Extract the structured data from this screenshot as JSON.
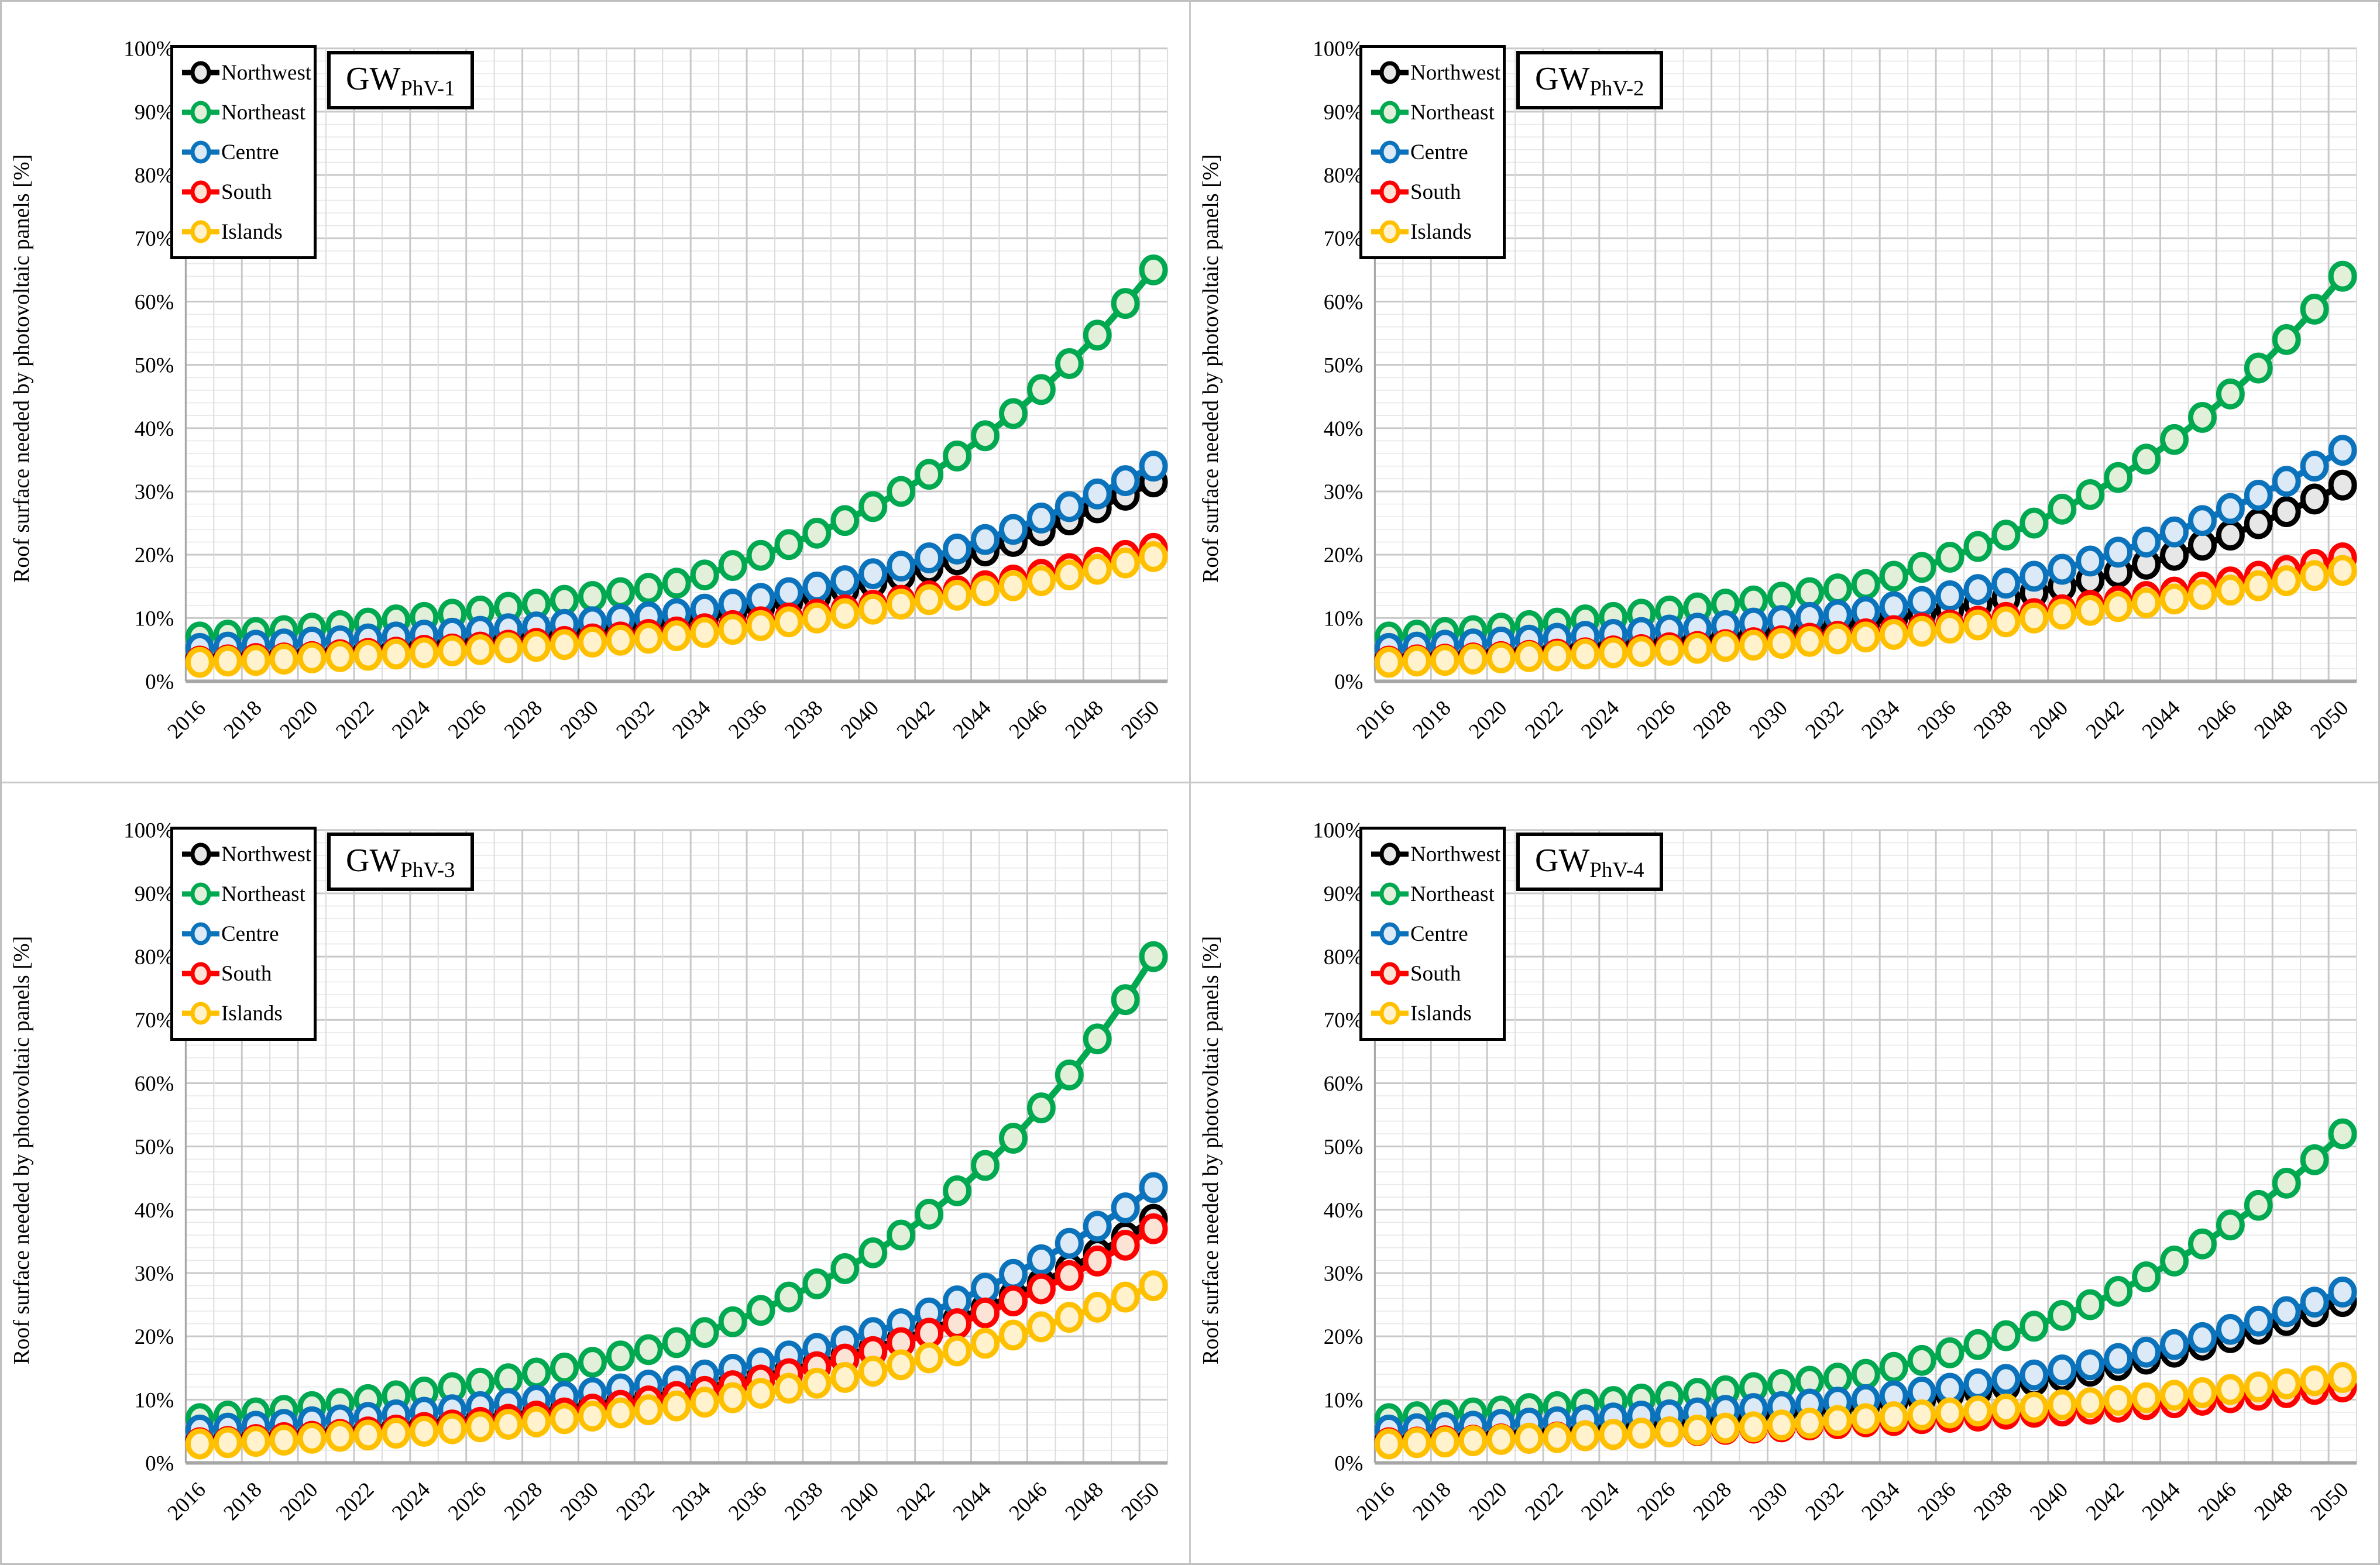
{
  "figure": {
    "ylabel": "Roof surface needed by photovoltaic panels [%]",
    "ytick_labels": [
      "0%",
      "10%",
      "20%",
      "30%",
      "40%",
      "50%",
      "60%",
      "70%",
      "80%",
      "90%",
      "100%"
    ],
    "xtick_labels": [
      "2016",
      "2018",
      "2020",
      "2022",
      "2024",
      "2026",
      "2028",
      "2030",
      "2032",
      "2034",
      "2036",
      "2038",
      "2040",
      "2042",
      "2044",
      "2046",
      "2048",
      "2050"
    ],
    "legend": {
      "items": [
        {
          "label": "Northwest",
          "line_color": "#000000",
          "fill_color": "#E7E7E7"
        },
        {
          "label": "Northeast",
          "line_color": "#00A94F",
          "fill_color": "#E2F0D9"
        },
        {
          "label": "Centre",
          "line_color": "#0B72BC",
          "fill_color": "#DCE9F7"
        },
        {
          "label": "South",
          "line_color": "#FF0000",
          "fill_color": "#FBE3D6"
        },
        {
          "label": "Islands",
          "line_color": "#FFC000",
          "fill_color": "#FFF2CC"
        }
      ]
    },
    "grid": {
      "minor_color": "#E8E8E8",
      "major_color": "#C9C9C9",
      "axis_color": "#A6A6A6"
    }
  },
  "chart_data": [
    {
      "type": "line",
      "title_main": "GW",
      "title_sub": "PhV-1",
      "ylabel": "Roof surface needed by photovoltaic panels [%]",
      "ylim": [
        0,
        100
      ],
      "x_start": 2016,
      "x_end": 2050,
      "x_step": 1,
      "series": [
        {
          "name": "Northwest",
          "values": [
            3.6,
            3.8,
            4.0,
            4.3,
            4.5,
            4.8,
            5.1,
            5.3,
            5.7,
            6.0,
            6.3,
            6.7,
            7.1,
            7.5,
            7.9,
            8.4,
            8.8,
            9.5,
            10.2,
            10.9,
            11.7,
            12.6,
            13.5,
            14.5,
            15.6,
            16.7,
            17.9,
            19.2,
            20.6,
            22.1,
            23.8,
            25.5,
            27.4,
            29.4,
            31.5
          ]
        },
        {
          "name": "Northeast",
          "values": [
            7.0,
            7.3,
            7.7,
            8.0,
            8.4,
            8.8,
            9.2,
            9.7,
            10.1,
            10.6,
            11.1,
            11.7,
            12.2,
            12.8,
            13.4,
            14.0,
            14.7,
            15.5,
            16.8,
            18.3,
            19.9,
            21.6,
            23.4,
            25.4,
            27.6,
            30.0,
            32.7,
            35.6,
            38.8,
            42.3,
            46.1,
            50.2,
            54.7,
            59.7,
            65.0
          ]
        },
        {
          "name": "Centre",
          "values": [
            5.2,
            5.4,
            5.7,
            5.9,
            6.2,
            6.4,
            6.7,
            7.0,
            7.3,
            7.6,
            7.9,
            8.3,
            8.6,
            9.0,
            9.4,
            9.8,
            10.2,
            10.7,
            11.4,
            12.2,
            13.1,
            14.0,
            14.9,
            15.9,
            17.0,
            18.2,
            19.5,
            20.9,
            22.4,
            24.0,
            25.8,
            27.6,
            29.6,
            31.7,
            34.0
          ]
        },
        {
          "name": "South",
          "values": [
            3.2,
            3.4,
            3.6,
            3.7,
            3.9,
            4.2,
            4.4,
            4.6,
            4.9,
            5.1,
            5.4,
            5.7,
            6.0,
            6.3,
            6.7,
            7.0,
            7.4,
            7.8,
            8.3,
            8.8,
            9.4,
            10.0,
            10.6,
            11.3,
            12.0,
            12.8,
            13.5,
            14.3,
            15.1,
            16.0,
            16.9,
            17.8,
            18.8,
            19.9,
            21.0
          ]
        },
        {
          "name": "Islands",
          "values": [
            3.0,
            3.2,
            3.3,
            3.5,
            3.7,
            3.9,
            4.1,
            4.3,
            4.5,
            4.8,
            5.0,
            5.3,
            5.5,
            5.8,
            6.2,
            6.5,
            6.8,
            7.2,
            7.7,
            8.2,
            8.8,
            9.4,
            10.0,
            10.7,
            11.4,
            12.2,
            12.9,
            13.6,
            14.3,
            15.1,
            15.9,
            16.8,
            17.7,
            18.7,
            19.7
          ]
        }
      ]
    },
    {
      "type": "line",
      "title_main": "GW",
      "title_sub": "PhV-2",
      "ylabel": "Roof surface needed by photovoltaic panels [%]",
      "ylim": [
        0,
        100
      ],
      "x_start": 2016,
      "x_end": 2050,
      "x_step": 1,
      "series": [
        {
          "name": "Northwest",
          "values": [
            3.6,
            3.8,
            4.0,
            4.3,
            4.5,
            4.8,
            5.0,
            5.3,
            5.6,
            6.0,
            6.3,
            6.7,
            7.0,
            7.4,
            7.9,
            8.3,
            8.8,
            9.3,
            10.0,
            10.7,
            11.4,
            12.2,
            13.1,
            14.0,
            15.0,
            16.0,
            17.2,
            18.5,
            19.9,
            21.5,
            23.1,
            24.9,
            26.8,
            28.8,
            31.0
          ]
        },
        {
          "name": "Northeast",
          "values": [
            7.0,
            7.3,
            7.7,
            8.0,
            8.4,
            8.8,
            9.2,
            9.7,
            10.1,
            10.6,
            11.1,
            11.6,
            12.2,
            12.7,
            13.3,
            14.0,
            14.6,
            15.3,
            16.6,
            18.0,
            19.6,
            21.3,
            23.1,
            25.0,
            27.2,
            29.5,
            32.2,
            35.1,
            38.2,
            41.7,
            45.4,
            49.5,
            54.0,
            58.8,
            64.0
          ]
        },
        {
          "name": "Centre",
          "values": [
            5.2,
            5.4,
            5.7,
            5.9,
            6.2,
            6.5,
            6.8,
            7.1,
            7.4,
            7.7,
            8.1,
            8.4,
            8.8,
            9.2,
            9.6,
            10.1,
            10.5,
            11.0,
            11.8,
            12.6,
            13.5,
            14.5,
            15.5,
            16.6,
            17.7,
            19.0,
            20.4,
            22.0,
            23.6,
            25.4,
            27.3,
            29.4,
            31.6,
            34.0,
            36.5
          ]
        },
        {
          "name": "South",
          "values": [
            3.2,
            3.4,
            3.5,
            3.7,
            3.9,
            4.1,
            4.3,
            4.5,
            4.8,
            5.0,
            5.3,
            5.5,
            5.8,
            6.1,
            6.4,
            6.8,
            7.1,
            7.5,
            8.0,
            8.4,
            8.9,
            9.5,
            10.1,
            10.7,
            11.3,
            12.0,
            12.7,
            13.4,
            14.1,
            14.9,
            15.7,
            16.6,
            17.5,
            18.5,
            19.5
          ]
        },
        {
          "name": "Islands",
          "values": [
            3.0,
            3.2,
            3.3,
            3.5,
            3.7,
            3.9,
            4.0,
            4.3,
            4.5,
            4.7,
            4.9,
            5.2,
            5.5,
            5.7,
            6.0,
            6.3,
            6.7,
            7.0,
            7.4,
            7.9,
            8.4,
            8.9,
            9.4,
            10.0,
            10.6,
            11.2,
            11.8,
            12.4,
            13.0,
            13.7,
            14.4,
            15.1,
            15.9,
            16.7,
            17.5
          ]
        }
      ]
    },
    {
      "type": "line",
      "title_main": "GW",
      "title_sub": "PhV-3",
      "ylabel": "Roof surface needed by photovoltaic panels [%]",
      "ylim": [
        0,
        100
      ],
      "x_start": 2016,
      "x_end": 2050,
      "x_step": 1,
      "series": [
        {
          "name": "Northwest",
          "values": [
            3.6,
            3.8,
            4.1,
            4.4,
            4.7,
            5.0,
            5.3,
            5.7,
            6.1,
            6.5,
            7.0,
            7.4,
            7.9,
            8.5,
            9.0,
            9.7,
            10.3,
            11.0,
            11.8,
            12.7,
            13.6,
            14.6,
            15.7,
            16.9,
            18.1,
            19.5,
            21.0,
            22.7,
            24.5,
            26.4,
            28.4,
            30.7,
            33.1,
            35.7,
            38.5
          ]
        },
        {
          "name": "Northeast",
          "values": [
            7.0,
            7.4,
            7.9,
            8.3,
            8.9,
            9.4,
            10.0,
            10.6,
            11.2,
            11.9,
            12.6,
            13.3,
            14.2,
            15.0,
            15.9,
            16.9,
            17.9,
            19.0,
            20.6,
            22.3,
            24.1,
            26.2,
            28.3,
            30.7,
            33.2,
            36.0,
            39.3,
            43.0,
            47.0,
            51.3,
            56.1,
            61.3,
            67.0,
            73.2,
            80.0
          ]
        },
        {
          "name": "Centre",
          "values": [
            5.2,
            5.5,
            5.8,
            6.1,
            6.5,
            6.8,
            7.2,
            7.6,
            8.0,
            8.4,
            8.9,
            9.4,
            9.9,
            10.5,
            11.1,
            11.7,
            12.3,
            13.0,
            13.9,
            14.8,
            15.8,
            16.9,
            18.1,
            19.3,
            20.6,
            22.0,
            23.7,
            25.6,
            27.6,
            29.8,
            32.1,
            34.7,
            37.4,
            40.3,
            43.5
          ]
        },
        {
          "name": "South",
          "values": [
            3.2,
            3.4,
            3.7,
            4.0,
            4.2,
            4.5,
            4.9,
            5.2,
            5.6,
            6.0,
            6.4,
            6.9,
            7.4,
            7.9,
            8.5,
            9.1,
            9.8,
            10.5,
            11.3,
            12.2,
            13.1,
            14.1,
            15.2,
            16.4,
            17.6,
            19.0,
            20.5,
            22.0,
            23.7,
            25.6,
            27.5,
            29.6,
            31.9,
            34.4,
            37.0
          ]
        },
        {
          "name": "Islands",
          "values": [
            3.0,
            3.2,
            3.4,
            3.6,
            3.9,
            4.2,
            4.4,
            4.7,
            5.0,
            5.4,
            5.7,
            6.1,
            6.5,
            7.0,
            7.4,
            7.9,
            8.4,
            9.0,
            9.6,
            10.3,
            11.0,
            11.8,
            12.6,
            13.5,
            14.5,
            15.5,
            16.6,
            17.7,
            18.9,
            20.2,
            21.5,
            23.0,
            24.6,
            26.2,
            28.0
          ]
        }
      ]
    },
    {
      "type": "line",
      "title_main": "GW",
      "title_sub": "PhV-4",
      "ylabel": "Roof surface needed by photovoltaic panels [%]",
      "ylim": [
        0,
        100
      ],
      "x_start": 2016,
      "x_end": 2050,
      "x_step": 1,
      "series": [
        {
          "name": "Northwest",
          "values": [
            3.6,
            3.8,
            4.0,
            4.2,
            4.5,
            4.7,
            5.0,
            5.2,
            5.5,
            5.8,
            6.2,
            6.5,
            6.9,
            7.3,
            7.7,
            8.1,
            8.5,
            9.0,
            9.6,
            10.1,
            10.8,
            11.4,
            12.1,
            12.9,
            13.7,
            14.5,
            15.4,
            16.4,
            17.5,
            18.6,
            19.8,
            21.1,
            22.5,
            23.9,
            25.5
          ]
        },
        {
          "name": "Northeast",
          "values": [
            7.0,
            7.3,
            7.6,
            7.9,
            8.2,
            8.6,
            8.9,
            9.3,
            9.7,
            10.1,
            10.5,
            11.0,
            11.4,
            11.9,
            12.4,
            12.9,
            13.4,
            14.0,
            15.1,
            16.2,
            17.4,
            18.7,
            20.1,
            21.6,
            23.3,
            25.0,
            27.1,
            29.4,
            31.9,
            34.6,
            37.6,
            40.7,
            44.2,
            47.9,
            52.0
          ]
        },
        {
          "name": "Centre",
          "values": [
            5.2,
            5.4,
            5.6,
            5.8,
            6.1,
            6.3,
            6.5,
            6.8,
            7.1,
            7.4,
            7.6,
            7.9,
            8.3,
            8.6,
            8.9,
            9.3,
            9.6,
            10.0,
            10.6,
            11.2,
            11.8,
            12.5,
            13.2,
            13.9,
            14.7,
            15.5,
            16.5,
            17.5,
            18.7,
            19.8,
            21.1,
            22.4,
            23.9,
            25.4,
            27.0
          ]
        },
        {
          "name": "South",
          "values": [
            3.2,
            3.3,
            3.5,
            3.6,
            3.8,
            3.9,
            4.1,
            4.3,
            4.5,
            4.7,
            4.9,
            5.1,
            5.3,
            5.5,
            5.7,
            6.0,
            6.2,
            6.5,
            6.7,
            7.0,
            7.2,
            7.4,
            7.7,
            8.0,
            8.2,
            8.5,
            8.8,
            9.2,
            9.5,
            9.9,
            10.3,
            10.7,
            11.1,
            11.6,
            12.0
          ]
        },
        {
          "name": "Islands",
          "values": [
            3.0,
            3.2,
            3.3,
            3.5,
            3.7,
            3.9,
            4.0,
            4.3,
            4.5,
            4.7,
            4.9,
            5.2,
            5.5,
            5.7,
            6.0,
            6.3,
            6.7,
            7.0,
            7.3,
            7.6,
            7.9,
            8.2,
            8.5,
            8.8,
            9.2,
            9.5,
            9.9,
            10.3,
            10.7,
            11.1,
            11.6,
            12.0,
            12.5,
            13.0,
            13.5
          ]
        }
      ]
    }
  ]
}
